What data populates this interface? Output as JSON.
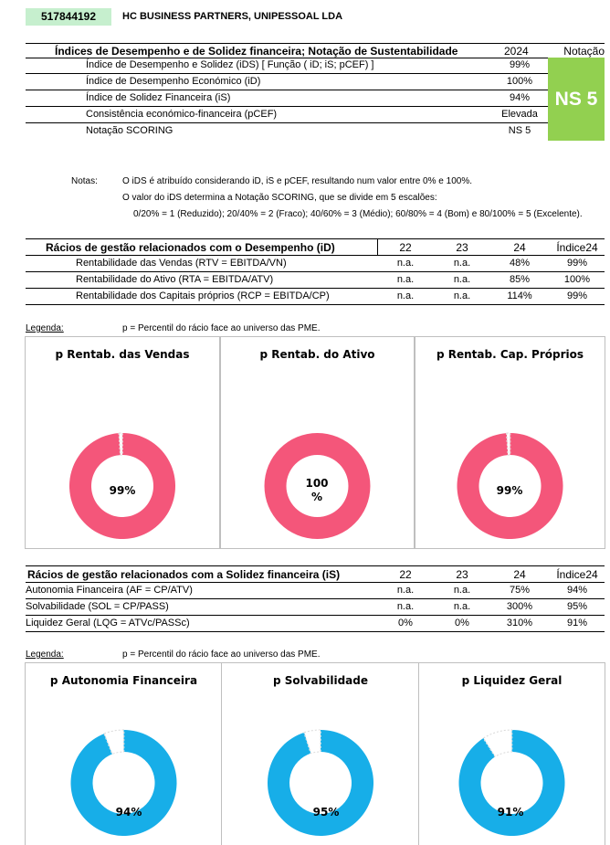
{
  "header": {
    "nif": "517844192",
    "company": "HC BUSINESS PARTNERS, UNIPESSOAL LDA"
  },
  "summary": {
    "title": "Índices de Desempenho e de Solidez financeira; Notação de Sustentabilidade",
    "year": "2024",
    "notation_header": "Notação",
    "notation_value": "NS 5",
    "rows": [
      {
        "label": "Índice de Desempenho e Solidez (iDS) [ Função ( iD; iS; pCEF) ]",
        "value": "99%"
      },
      {
        "label": "Índice de Desempenho Económico (iD)",
        "value": "100%"
      },
      {
        "label": "Índice de Solidez Financeira (iS)",
        "value": "94%"
      },
      {
        "label": "Consistência económico-financeira (pCEF)",
        "value": "Elevada"
      },
      {
        "label": "Notação SCORING",
        "value": "NS 5"
      }
    ]
  },
  "notes": {
    "label": "Notas:",
    "line1": "O iDS é atribuído considerando iD, iS e pCEF, resultando num valor entre 0% e 100%.",
    "line2": "O valor do iDS determina a Notação SCORING, que se divide em 5 escalões:",
    "line3": "0/20% = 1 (Reduzido); 20/40% = 2 (Fraco); 40/60% = 3 (Médio); 60/80% = 4 (Bom) e 80/100% = 5 (Excelente)."
  },
  "performance_table": {
    "title": "Rácios de gestão relacionados com o Desempenho (iD)",
    "cols": [
      "22",
      "23",
      "24",
      "Índice24"
    ],
    "rows": [
      {
        "label": "Rentabilidade das Vendas (RTV = EBITDA/VN)",
        "v": [
          "n.a.",
          "n.a.",
          "48%",
          "99%"
        ]
      },
      {
        "label": "Rentabilidade do Ativo (RTA = EBITDA/ATV)",
        "v": [
          "n.a.",
          "n.a.",
          "85%",
          "100%"
        ]
      },
      {
        "label": "Rentabilidade dos Capitais próprios (RCP = EBITDA/CP)",
        "v": [
          "n.a.",
          "n.a.",
          "114%",
          "99%"
        ]
      }
    ]
  },
  "legend1": {
    "label": "Legenda:",
    "text": "p = Percentil do rácio face ao universo das PME."
  },
  "performance_charts": [
    {
      "title": "p Rentab. das Vendas",
      "value": 99,
      "label": "99%",
      "color": "#f4567a"
    },
    {
      "title": "p Rentab. do Ativo",
      "value": 100,
      "label": "100\n%",
      "color": "#f4567a"
    },
    {
      "title": "p Rentab. Cap. Próprios",
      "value": 99,
      "label": "99%",
      "color": "#f4567a"
    }
  ],
  "solidity_table": {
    "title": "Rácios de gestão relacionados com a Solidez financeira (iS)",
    "cols": [
      "22",
      "23",
      "24",
      "Índice24"
    ],
    "rows": [
      {
        "label": "Autonomia Financeira (AF = CP/ATV)",
        "v": [
          "n.a.",
          "n.a.",
          "75%",
          "94%"
        ]
      },
      {
        "label": "Solvabilidade (SOL = CP/PASS)",
        "v": [
          "n.a.",
          "n.a.",
          "300%",
          "95%"
        ]
      },
      {
        "label": "Liquidez Geral (LQG = ATVc/PASSc)",
        "v": [
          "0%",
          "0%",
          "310%",
          "91%"
        ]
      }
    ]
  },
  "legend2": {
    "label": "Legenda:",
    "text": "p = Percentil do rácio face ao universo das PME."
  },
  "solidity_charts": [
    {
      "title": "p Autonomia Financeira",
      "value": 94,
      "label": "94%",
      "color": "#17aee8"
    },
    {
      "title": "p Solvabilidade",
      "value": 95,
      "label": "95%",
      "color": "#17aee8"
    },
    {
      "title": "p Liquidez Geral",
      "value": 91,
      "label": "91%",
      "color": "#17aee8"
    }
  ]
}
